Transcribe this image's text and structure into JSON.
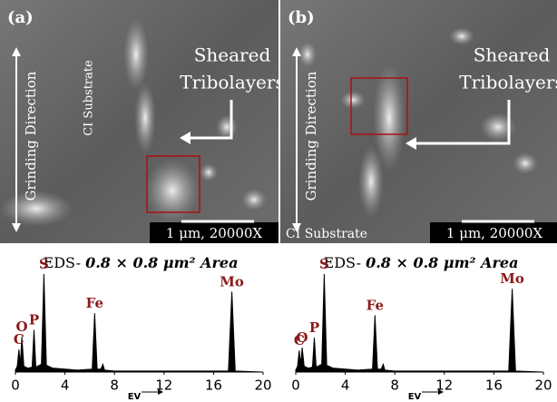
{
  "panels": [
    {
      "label": "(a)",
      "annotation": [
        "Sheared",
        "Tribolayers"
      ],
      "direction": "Grinding Direction",
      "substrate": "CI Substrate",
      "scale_bar": "1 μm, 20000X",
      "eds_title": "EDS- ",
      "eds_area": "0.8 × 0.8 μm² Area"
    },
    {
      "label": "(b)",
      "annotation": [
        "Sheared",
        "Tribolayers"
      ],
      "direction": "Grinding Direction",
      "substrate": "CI Substrate",
      "scale_bar": "1 μm, 20000X",
      "eds_title": "EDS- ",
      "eds_area": "0.8 × 0.8 μm² Area"
    }
  ],
  "chart_data": [
    {
      "type": "line",
      "color": "#000000",
      "xlabel": "EV",
      "xlim": [
        0,
        20
      ],
      "xticks": [
        0,
        4,
        8,
        12,
        16,
        20
      ],
      "ylim": [
        0,
        100
      ],
      "x": [
        0,
        0.15,
        0.28,
        0.4,
        0.52,
        0.68,
        1.0,
        1.35,
        1.5,
        1.65,
        2.1,
        2.3,
        2.5,
        3,
        5,
        6.2,
        6.4,
        6.6,
        6.9,
        7.06,
        7.2,
        8,
        12,
        17.2,
        17.48,
        17.75,
        20
      ],
      "values": [
        2,
        6,
        23,
        8,
        36,
        6,
        4,
        5,
        43,
        5,
        8,
        100,
        7,
        4,
        2,
        3,
        60,
        3,
        3,
        8,
        2,
        1,
        1,
        1,
        82,
        1,
        0
      ],
      "peak_labels": [
        null,
        null,
        "C",
        null,
        "O",
        null,
        null,
        null,
        "P",
        null,
        null,
        "S",
        null,
        null,
        null,
        null,
        "Fe",
        null,
        null,
        null,
        null,
        null,
        null,
        null,
        "Mo",
        null,
        null
      ]
    },
    {
      "type": "line",
      "color": "#000000",
      "xlabel": "EV",
      "xlim": [
        0,
        20
      ],
      "xticks": [
        0,
        4,
        8,
        12,
        16,
        20
      ],
      "ylim": [
        0,
        100
      ],
      "x": [
        0,
        0.15,
        0.28,
        0.4,
        0.52,
        0.68,
        1.0,
        1.35,
        1.5,
        1.65,
        2.1,
        2.3,
        2.5,
        3,
        5,
        6.2,
        6.4,
        6.6,
        6.9,
        7.06,
        7.2,
        8,
        12,
        17.2,
        17.48,
        17.75,
        20
      ],
      "values": [
        2,
        6,
        22,
        8,
        25,
        6,
        4,
        5,
        35,
        5,
        8,
        100,
        7,
        4,
        2,
        3,
        58,
        3,
        3,
        8,
        2,
        1,
        1,
        1,
        85,
        1,
        0
      ],
      "peak_labels": [
        null,
        null,
        "C",
        null,
        "O",
        null,
        null,
        null,
        "P",
        null,
        null,
        "S",
        null,
        null,
        null,
        null,
        "Fe",
        null,
        null,
        null,
        null,
        null,
        null,
        null,
        "Mo",
        null,
        null
      ]
    }
  ]
}
